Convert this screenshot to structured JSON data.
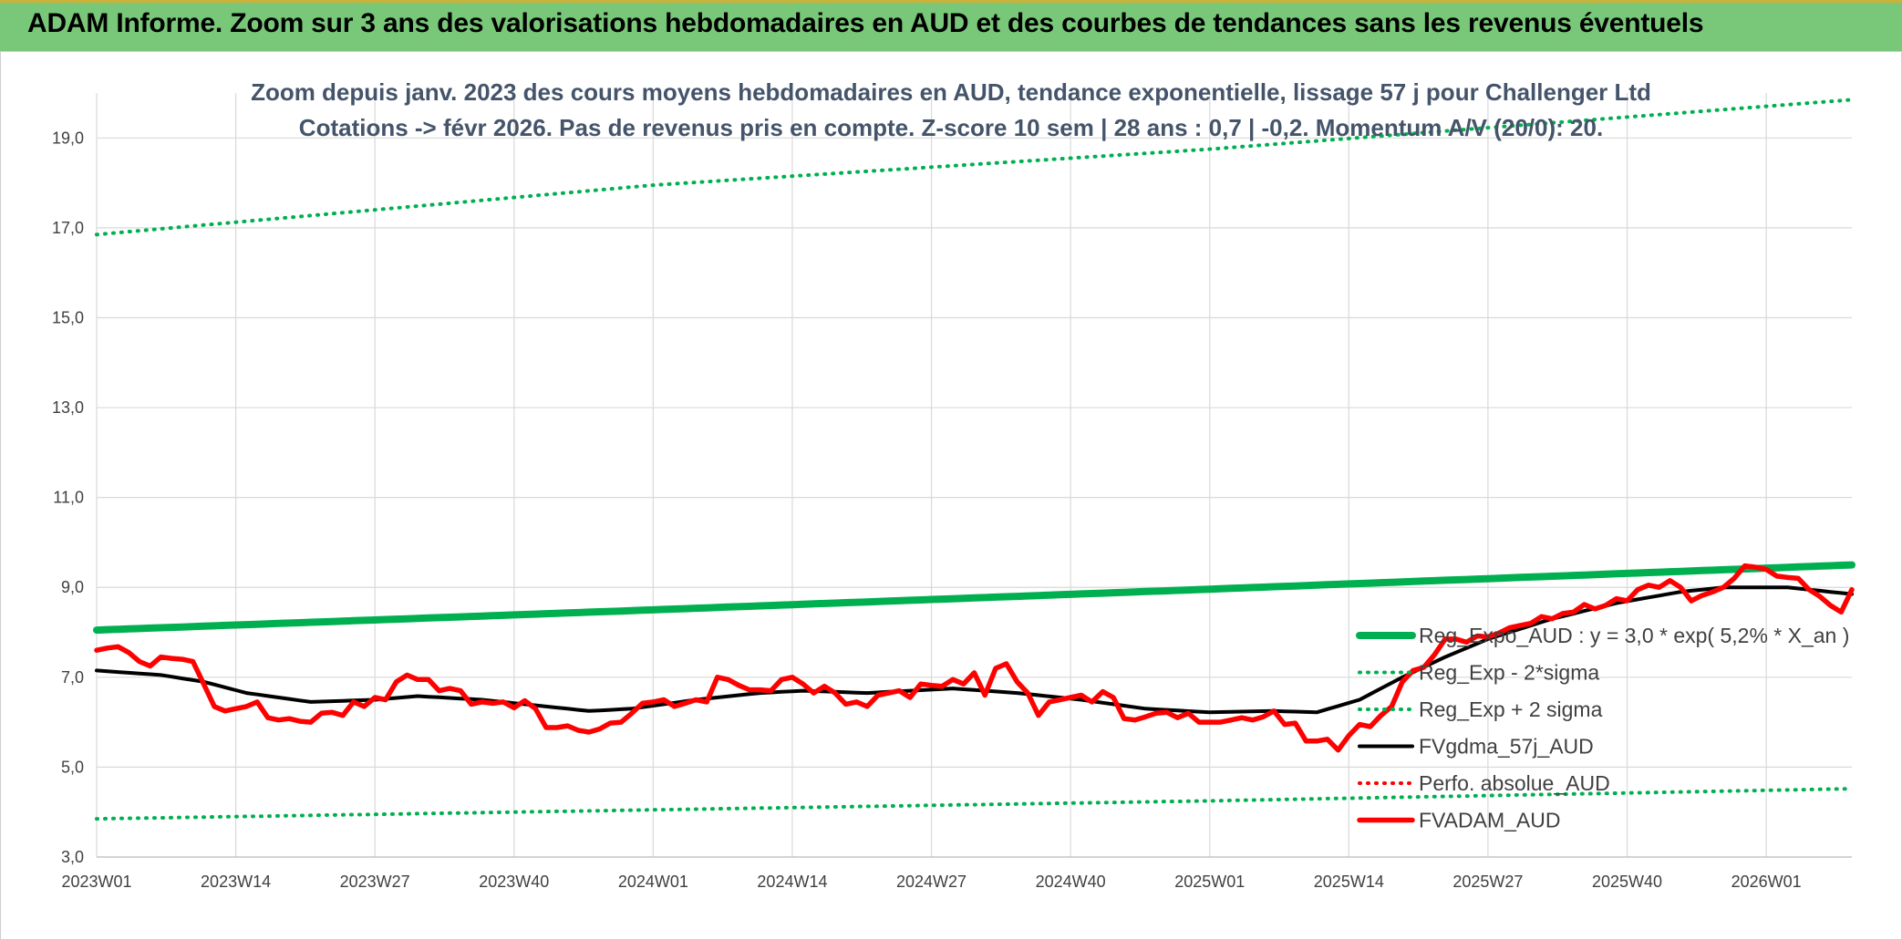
{
  "header": {
    "title": "ADAM Informe. Zoom sur 3 ans des valorisations hebdomadaires en AUD et des courbes de tendances sans les revenus éventuels"
  },
  "chart_data": {
    "type": "line",
    "subtitle_line1": "Zoom depuis janv. 2023 des cours moyens hebdomadaires en AUD, tendance exponentielle, lissage 57 j pour Challenger Ltd",
    "subtitle_line2": "Cotations -> févr 2026. Pas de revenus pris en compte. Z-score 10 sem | 28 ans : 0,7 | -0,2. Momentum A/V (20/0): 20.",
    "xlabel": "",
    "ylabel": "",
    "ylim": [
      3,
      20
    ],
    "y_ticks": [
      "3,0",
      "5,0",
      "7,0",
      "9,0",
      "11,0",
      "13,0",
      "15,0",
      "17,0",
      "19,0"
    ],
    "x_tick_labels": [
      "2023W01",
      "2023W14",
      "2023W27",
      "2023W40",
      "2024W01",
      "2024W14",
      "2024W27",
      "2024W40",
      "2025W01",
      "2025W14",
      "2025W27",
      "2025W40",
      "2026W01"
    ],
    "x_tick_index": [
      0,
      13,
      26,
      39,
      52,
      65,
      78,
      91,
      104,
      117,
      130,
      143,
      156
    ],
    "n_weeks": 165,
    "grid": true,
    "legend_position": "right",
    "series": [
      {
        "name": "Reg_Expo_AUD : y = 3,0 * exp( 5,2% *  X_an )",
        "style": "solid-thick",
        "color": "#00b050",
        "anchors": [
          [
            0,
            8.05
          ],
          [
            52,
            8.5
          ],
          [
            104,
            8.96
          ],
          [
            164,
            9.5
          ]
        ]
      },
      {
        "name": "Reg_Exp - 2*sigma",
        "style": "dotted",
        "color": "#00b050",
        "anchors": [
          [
            0,
            3.85
          ],
          [
            52,
            4.05
          ],
          [
            104,
            4.25
          ],
          [
            164,
            4.52
          ]
        ]
      },
      {
        "name": "Reg_Exp + 2 sigma",
        "style": "dotted",
        "color": "#00b050",
        "anchors": [
          [
            0,
            16.85
          ],
          [
            52,
            17.95
          ],
          [
            104,
            18.75
          ],
          [
            164,
            19.85
          ]
        ]
      },
      {
        "name": "FVgdma_57j_AUD",
        "style": "solid",
        "color": "#000000",
        "anchors": [
          [
            0,
            7.15
          ],
          [
            6,
            7.05
          ],
          [
            10,
            6.9
          ],
          [
            14,
            6.65
          ],
          [
            20,
            6.45
          ],
          [
            26,
            6.5
          ],
          [
            30,
            6.58
          ],
          [
            36,
            6.5
          ],
          [
            42,
            6.35
          ],
          [
            46,
            6.25
          ],
          [
            50,
            6.3
          ],
          [
            56,
            6.5
          ],
          [
            62,
            6.65
          ],
          [
            66,
            6.7
          ],
          [
            72,
            6.65
          ],
          [
            80,
            6.75
          ],
          [
            86,
            6.65
          ],
          [
            92,
            6.5
          ],
          [
            98,
            6.3
          ],
          [
            104,
            6.22
          ],
          [
            110,
            6.25
          ],
          [
            114,
            6.22
          ],
          [
            118,
            6.5
          ],
          [
            122,
            7.0
          ],
          [
            126,
            7.45
          ],
          [
            130,
            7.85
          ],
          [
            136,
            8.3
          ],
          [
            142,
            8.65
          ],
          [
            148,
            8.9
          ],
          [
            152,
            9.0
          ],
          [
            158,
            9.0
          ],
          [
            164,
            8.85
          ]
        ]
      },
      {
        "name": "Perfo. absolue_AUD",
        "style": "dotted",
        "color": "#ff0000",
        "anchors": []
      },
      {
        "name": "FVADAM_AUD",
        "style": "solid-thick",
        "color": "#ff0000",
        "anchors": [
          [
            0,
            7.6
          ],
          [
            1,
            7.65
          ],
          [
            2,
            7.68
          ],
          [
            3,
            7.55
          ],
          [
            4,
            7.35
          ],
          [
            5,
            7.25
          ],
          [
            6,
            7.45
          ],
          [
            7,
            7.42
          ],
          [
            8,
            7.4
          ],
          [
            9,
            7.35
          ],
          [
            10,
            6.85
          ],
          [
            11,
            6.35
          ],
          [
            12,
            6.25
          ],
          [
            13,
            6.3
          ],
          [
            14,
            6.35
          ],
          [
            15,
            6.45
          ],
          [
            16,
            6.1
          ],
          [
            17,
            6.05
          ],
          [
            18,
            6.08
          ],
          [
            19,
            6.02
          ],
          [
            20,
            6.0
          ],
          [
            21,
            6.2
          ],
          [
            22,
            6.22
          ],
          [
            23,
            6.15
          ],
          [
            24,
            6.45
          ],
          [
            25,
            6.35
          ],
          [
            26,
            6.55
          ],
          [
            27,
            6.5
          ],
          [
            28,
            6.9
          ],
          [
            29,
            7.05
          ],
          [
            30,
            6.95
          ],
          [
            31,
            6.95
          ],
          [
            32,
            6.7
          ],
          [
            33,
            6.75
          ],
          [
            34,
            6.7
          ],
          [
            35,
            6.4
          ],
          [
            36,
            6.45
          ],
          [
            37,
            6.42
          ],
          [
            38,
            6.45
          ],
          [
            39,
            6.32
          ],
          [
            40,
            6.48
          ],
          [
            41,
            6.3
          ],
          [
            42,
            5.88
          ],
          [
            43,
            5.88
          ],
          [
            44,
            5.92
          ],
          [
            45,
            5.82
          ],
          [
            46,
            5.78
          ],
          [
            47,
            5.85
          ],
          [
            48,
            5.98
          ],
          [
            49,
            6.0
          ],
          [
            50,
            6.2
          ],
          [
            51,
            6.42
          ],
          [
            52,
            6.45
          ],
          [
            53,
            6.5
          ],
          [
            54,
            6.35
          ],
          [
            55,
            6.42
          ],
          [
            56,
            6.5
          ],
          [
            57,
            6.45
          ],
          [
            58,
            7.0
          ],
          [
            59,
            6.95
          ],
          [
            60,
            6.82
          ],
          [
            61,
            6.72
          ],
          [
            62,
            6.72
          ],
          [
            63,
            6.7
          ],
          [
            64,
            6.95
          ],
          [
            65,
            7.0
          ],
          [
            66,
            6.85
          ],
          [
            67,
            6.65
          ],
          [
            68,
            6.8
          ],
          [
            69,
            6.65
          ],
          [
            70,
            6.4
          ],
          [
            71,
            6.45
          ],
          [
            72,
            6.35
          ],
          [
            73,
            6.6
          ],
          [
            74,
            6.65
          ],
          [
            75,
            6.7
          ],
          [
            76,
            6.55
          ],
          [
            77,
            6.85
          ],
          [
            78,
            6.82
          ],
          [
            79,
            6.8
          ],
          [
            80,
            6.95
          ],
          [
            81,
            6.85
          ],
          [
            82,
            7.1
          ],
          [
            83,
            6.6
          ],
          [
            84,
            7.2
          ],
          [
            85,
            7.3
          ],
          [
            86,
            6.9
          ],
          [
            87,
            6.65
          ],
          [
            88,
            6.15
          ],
          [
            89,
            6.45
          ],
          [
            90,
            6.5
          ],
          [
            91,
            6.55
          ],
          [
            92,
            6.6
          ],
          [
            93,
            6.45
          ],
          [
            94,
            6.68
          ],
          [
            95,
            6.55
          ],
          [
            96,
            6.08
          ],
          [
            97,
            6.05
          ],
          [
            98,
            6.12
          ],
          [
            99,
            6.2
          ],
          [
            100,
            6.22
          ],
          [
            101,
            6.1
          ],
          [
            102,
            6.2
          ],
          [
            103,
            6.0
          ],
          [
            104,
            6.0
          ],
          [
            105,
            6.0
          ],
          [
            106,
            6.05
          ],
          [
            107,
            6.1
          ],
          [
            108,
            6.05
          ],
          [
            109,
            6.12
          ],
          [
            110,
            6.25
          ],
          [
            111,
            5.95
          ],
          [
            112,
            5.98
          ],
          [
            113,
            5.58
          ],
          [
            114,
            5.58
          ],
          [
            115,
            5.62
          ],
          [
            116,
            5.38
          ],
          [
            117,
            5.7
          ],
          [
            118,
            5.95
          ],
          [
            119,
            5.9
          ],
          [
            120,
            6.15
          ],
          [
            121,
            6.35
          ],
          [
            122,
            6.9
          ],
          [
            123,
            7.15
          ],
          [
            124,
            7.22
          ],
          [
            125,
            7.5
          ],
          [
            126,
            7.85
          ],
          [
            127,
            7.85
          ],
          [
            128,
            7.78
          ],
          [
            129,
            7.92
          ],
          [
            130,
            7.9
          ],
          [
            131,
            7.98
          ],
          [
            132,
            8.1
          ],
          [
            133,
            8.15
          ],
          [
            134,
            8.2
          ],
          [
            135,
            8.35
          ],
          [
            136,
            8.3
          ],
          [
            137,
            8.42
          ],
          [
            138,
            8.45
          ],
          [
            139,
            8.62
          ],
          [
            140,
            8.52
          ],
          [
            141,
            8.6
          ],
          [
            142,
            8.75
          ],
          [
            143,
            8.7
          ],
          [
            144,
            8.95
          ],
          [
            145,
            9.05
          ],
          [
            146,
            9.0
          ],
          [
            147,
            9.15
          ],
          [
            148,
            9.0
          ],
          [
            149,
            8.7
          ],
          [
            150,
            8.82
          ],
          [
            151,
            8.9
          ],
          [
            152,
            9.0
          ],
          [
            153,
            9.2
          ],
          [
            154,
            9.48
          ],
          [
            155,
            9.45
          ],
          [
            156,
            9.4
          ],
          [
            157,
            9.25
          ],
          [
            158,
            9.22
          ],
          [
            159,
            9.2
          ],
          [
            160,
            8.95
          ],
          [
            161,
            8.8
          ],
          [
            162,
            8.6
          ],
          [
            163,
            8.45
          ],
          [
            164,
            8.95
          ]
        ]
      }
    ]
  }
}
